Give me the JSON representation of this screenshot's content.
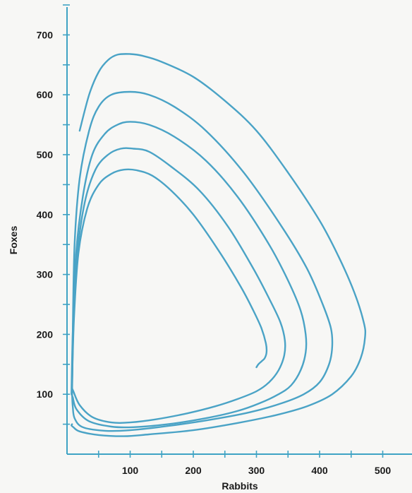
{
  "chart_data": {
    "type": "line",
    "title": "",
    "xlabel": "Rabbits",
    "ylabel": "Foxes",
    "xlim": [
      0,
      520
    ],
    "ylim": [
      0,
      760
    ],
    "x_major_ticks": [
      100,
      200,
      300,
      400,
      500
    ],
    "x_minor_ticks": [
      50,
      150,
      250,
      350,
      450
    ],
    "x_tick_labels": [
      "100",
      "200",
      "300",
      "400",
      "500"
    ],
    "y_major_ticks": [
      100,
      200,
      300,
      400,
      500,
      600,
      700
    ],
    "y_minor_ticks": [
      50,
      150,
      250,
      350,
      450,
      550,
      650,
      750
    ],
    "y_tick_labels": [
      "100",
      "200",
      "300",
      "400",
      "500",
      "600",
      "700"
    ],
    "grid": false,
    "line_color": "#4aa3c6",
    "series": [
      {
        "x": [
          20,
          35,
          50,
          65,
          80,
          100,
          120,
          150,
          200,
          250,
          300,
          350,
          400,
          430,
          455,
          470,
          472,
          465,
          450,
          420,
          380,
          330,
          270,
          200,
          130,
          90,
          50,
          20,
          10,
          7,
          8
        ],
        "y": [
          540,
          600,
          638,
          658,
          667,
          668,
          665,
          655,
          630,
          590,
          540,
          470,
          390,
          330,
          270,
          220,
          195,
          160,
          130,
          100,
          80,
          65,
          52,
          40,
          33,
          30,
          32,
          38,
          45,
          48,
          50
        ]
      },
      {
        "x": [
          8,
          9,
          12,
          20,
          35,
          50,
          70,
          100,
          130,
          170,
          220,
          280,
          340,
          380,
          405,
          418,
          420,
          415,
          400,
          375,
          340,
          290,
          230,
          160,
          100,
          60,
          25,
          12,
          9,
          8
        ],
        "y": [
          100,
          200,
          350,
          460,
          540,
          580,
          600,
          605,
          600,
          580,
          540,
          470,
          380,
          310,
          250,
          210,
          180,
          150,
          120,
          100,
          85,
          70,
          58,
          47,
          40,
          39,
          45,
          60,
          80,
          100
        ]
      },
      {
        "x": [
          7,
          9,
          14,
          25,
          40,
          60,
          80,
          100,
          130,
          170,
          220,
          270,
          320,
          350,
          370,
          378,
          378,
          370,
          355,
          335,
          305,
          270,
          220,
          160,
          105,
          70,
          35,
          15,
          9,
          7
        ],
        "y": [
          100,
          200,
          330,
          430,
          500,
          535,
          550,
          555,
          550,
          530,
          490,
          430,
          350,
          290,
          240,
          200,
          170,
          140,
          115,
          100,
          85,
          72,
          60,
          50,
          45,
          46,
          55,
          75,
          95,
          100
        ]
      },
      {
        "x": [
          8,
          10,
          16,
          28,
          45,
          65,
          85,
          105,
          130,
          165,
          210,
          255,
          295,
          320,
          338,
          345,
          344,
          335,
          320,
          300,
          270,
          235,
          190,
          140,
          100,
          70,
          40,
          20,
          10,
          8
        ],
        "y": [
          110,
          210,
          330,
          420,
          475,
          500,
          510,
          510,
          505,
          480,
          440,
          380,
          310,
          260,
          220,
          190,
          165,
          140,
          120,
          105,
          92,
          80,
          68,
          58,
          53,
          53,
          62,
          82,
          105,
          110
        ]
      },
      {
        "x": [
          8,
          11,
          18,
          32,
          50,
          70,
          90,
          110,
          135,
          165,
          200,
          240,
          275,
          295,
          308,
          315,
          316,
          313,
          308,
          303,
          300
        ],
        "y": [
          120,
          225,
          335,
          410,
          450,
          468,
          475,
          474,
          465,
          440,
          400,
          340,
          280,
          240,
          210,
          185,
          170,
          160,
          155,
          150,
          145
        ]
      }
    ]
  }
}
